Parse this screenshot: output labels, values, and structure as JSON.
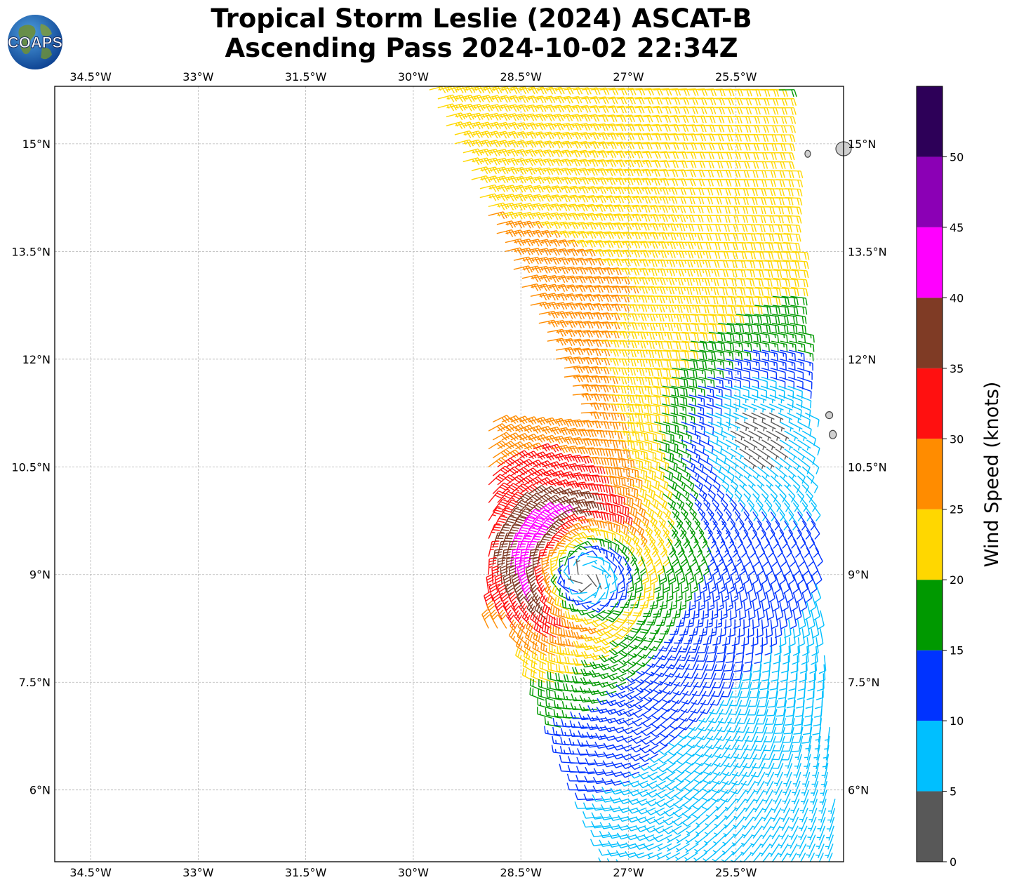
{
  "title": {
    "line1": "Tropical Storm Leslie (2024) ASCAT-B",
    "line2": "Ascending Pass 2024-10-02 22:34Z"
  },
  "logo": {
    "text": "COAPS"
  },
  "map": {
    "lon_range": [
      -35.0,
      -24.0
    ],
    "lat_range": [
      5.0,
      15.8
    ],
    "lon_ticks": [
      "34.5°W",
      "33°W",
      "31.5°W",
      "30°W",
      "28.5°W",
      "27°W",
      "25.5°W"
    ],
    "lon_tick_values": [
      -34.5,
      -33,
      -31.5,
      -30,
      -28.5,
      -27,
      -25.5
    ],
    "lat_ticks": [
      "15°N",
      "13.5°N",
      "12°N",
      "10.5°N",
      "9°N",
      "7.5°N",
      "6°N"
    ],
    "lat_tick_values": [
      15,
      13.5,
      12,
      10.5,
      9,
      7.5,
      6
    ],
    "gridlines": true,
    "storm_center": {
      "lon": -27.6,
      "lat": 9.1
    }
  },
  "colorbar": {
    "label": "Wind Speed (knots)",
    "tick_labels": [
      "0",
      "5",
      "10",
      "15",
      "20",
      "25",
      "30",
      "35",
      "40",
      "45",
      "50"
    ],
    "bins": [
      0,
      5,
      10,
      15,
      20,
      25,
      30,
      35,
      40,
      45,
      50,
      55
    ],
    "colors": [
      "#585858",
      "#00bfff",
      "#0033ff",
      "#009900",
      "#ffd700",
      "#ff8c00",
      "#ff1010",
      "#7f3b25",
      "#ff00ff",
      "#8b00b5",
      "#2d0058"
    ]
  }
}
